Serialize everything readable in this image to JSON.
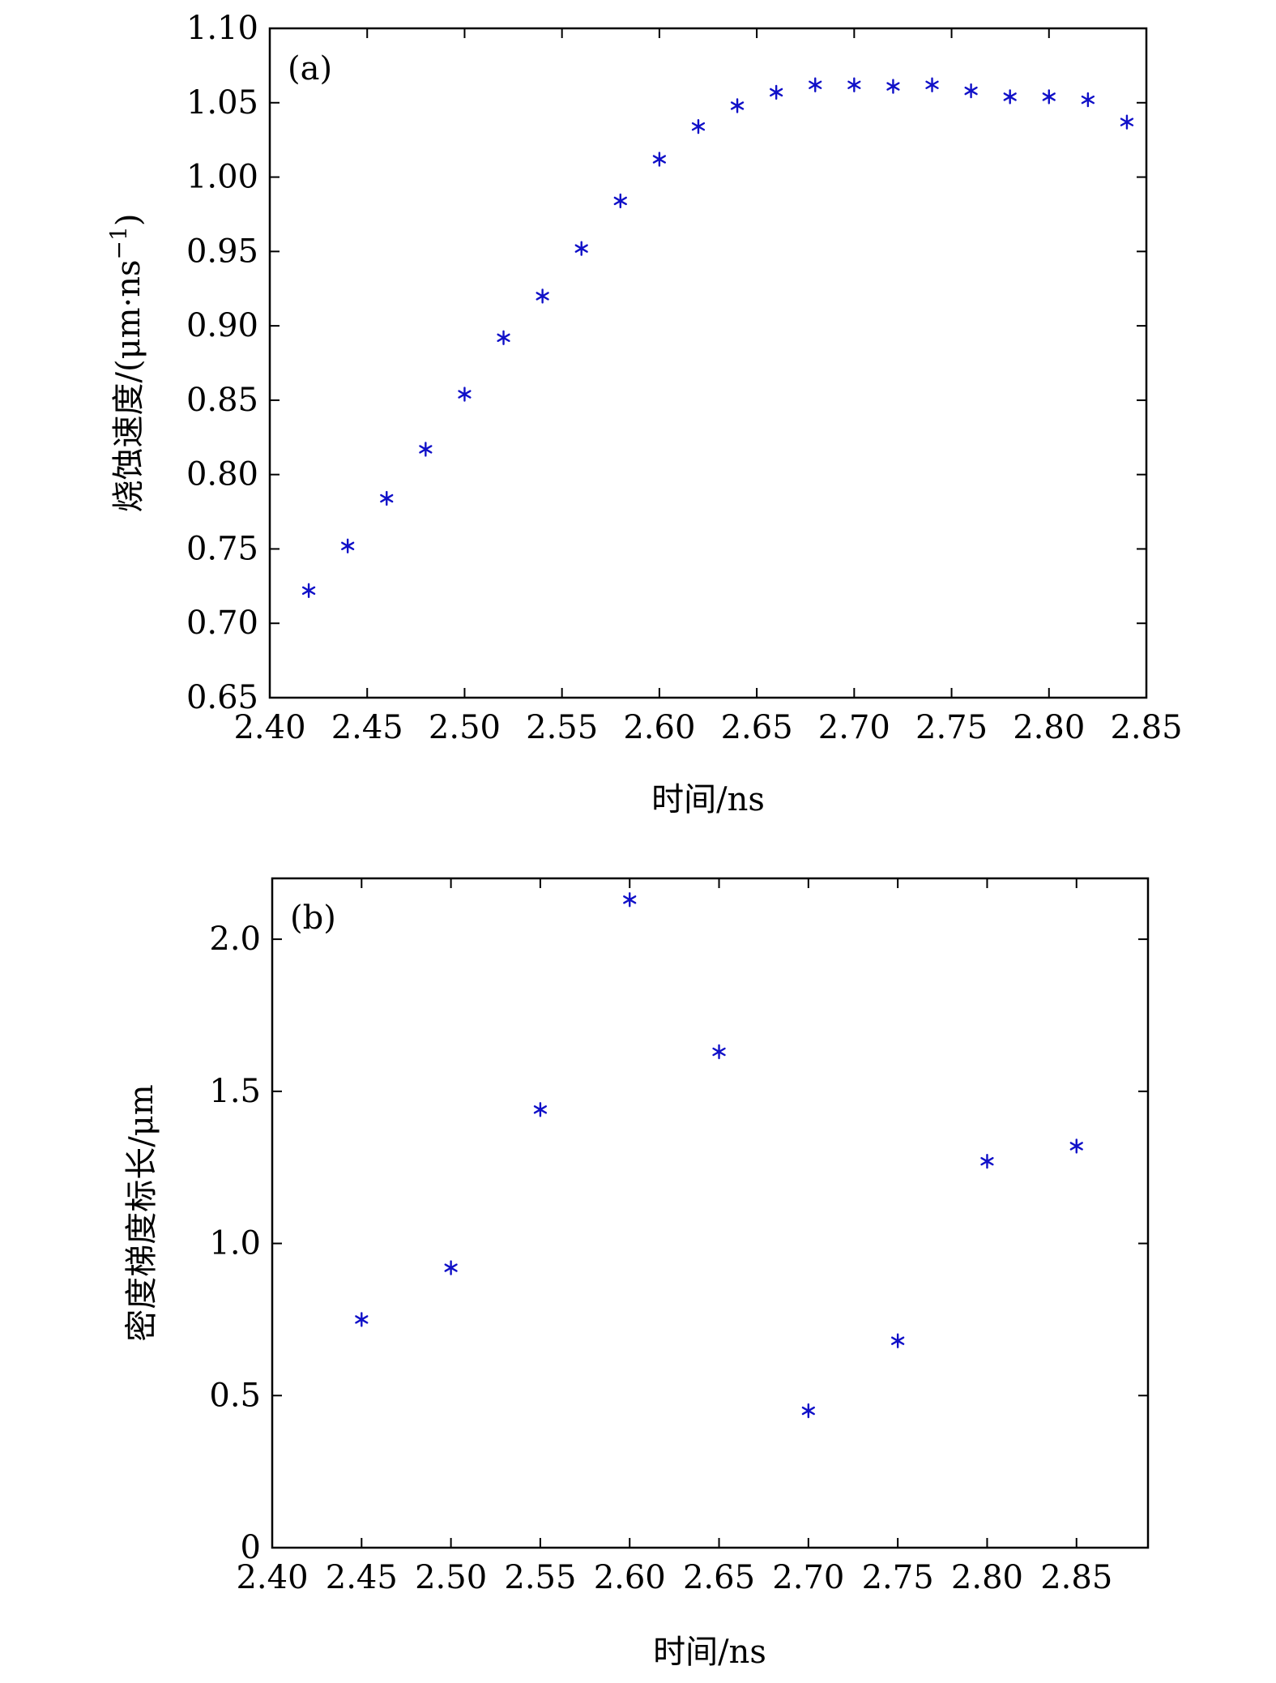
{
  "chart_data": [
    {
      "type": "scatter",
      "panel_label": "(a)",
      "xlabel": "时间/ns",
      "ylabel": "烧蚀速度/(μm·ns",
      "ylabel_sup": "−1",
      "ylabel_tail": ")",
      "xlim": [
        2.4,
        2.85
      ],
      "ylim": [
        0.65,
        1.1
      ],
      "xticks": [
        "2.40",
        "2.45",
        "2.50",
        "2.55",
        "2.60",
        "2.65",
        "2.70",
        "2.75",
        "2.80",
        "2.85"
      ],
      "yticks": [
        "0.65",
        "0.70",
        "0.75",
        "0.80",
        "0.85",
        "0.90",
        "0.95",
        "1.00",
        "1.05",
        "1.10"
      ],
      "marker_color": "#1010c8",
      "x": [
        2.42,
        2.44,
        2.46,
        2.48,
        2.5,
        2.52,
        2.54,
        2.56,
        2.58,
        2.6,
        2.62,
        2.64,
        2.66,
        2.68,
        2.7,
        2.72,
        2.74,
        2.76,
        2.78,
        2.8,
        2.82,
        2.84
      ],
      "y": [
        0.722,
        0.752,
        0.784,
        0.817,
        0.854,
        0.892,
        0.92,
        0.952,
        0.984,
        1.012,
        1.034,
        1.048,
        1.057,
        1.062,
        1.062,
        1.061,
        1.062,
        1.058,
        1.054,
        1.054,
        1.052,
        1.037
      ]
    },
    {
      "type": "scatter",
      "panel_label": "(b)",
      "xlabel": "时间/ns",
      "ylabel": "密度梯度标长/μm",
      "xlim": [
        2.4,
        2.89
      ],
      "ylim": [
        0,
        2.2
      ],
      "xticks": [
        "2.40",
        "2.45",
        "2.50",
        "2.55",
        "2.60",
        "2.65",
        "2.70",
        "2.75",
        "2.80",
        "2.85"
      ],
      "yticks": [
        "0",
        "0.5",
        "1.0",
        "1.5",
        "2.0"
      ],
      "marker_color": "#1010c8",
      "x": [
        2.45,
        2.5,
        2.55,
        2.6,
        2.65,
        2.7,
        2.75,
        2.8,
        2.85
      ],
      "y": [
        0.75,
        0.92,
        1.44,
        2.13,
        1.63,
        0.45,
        0.68,
        1.27,
        1.32
      ]
    }
  ]
}
